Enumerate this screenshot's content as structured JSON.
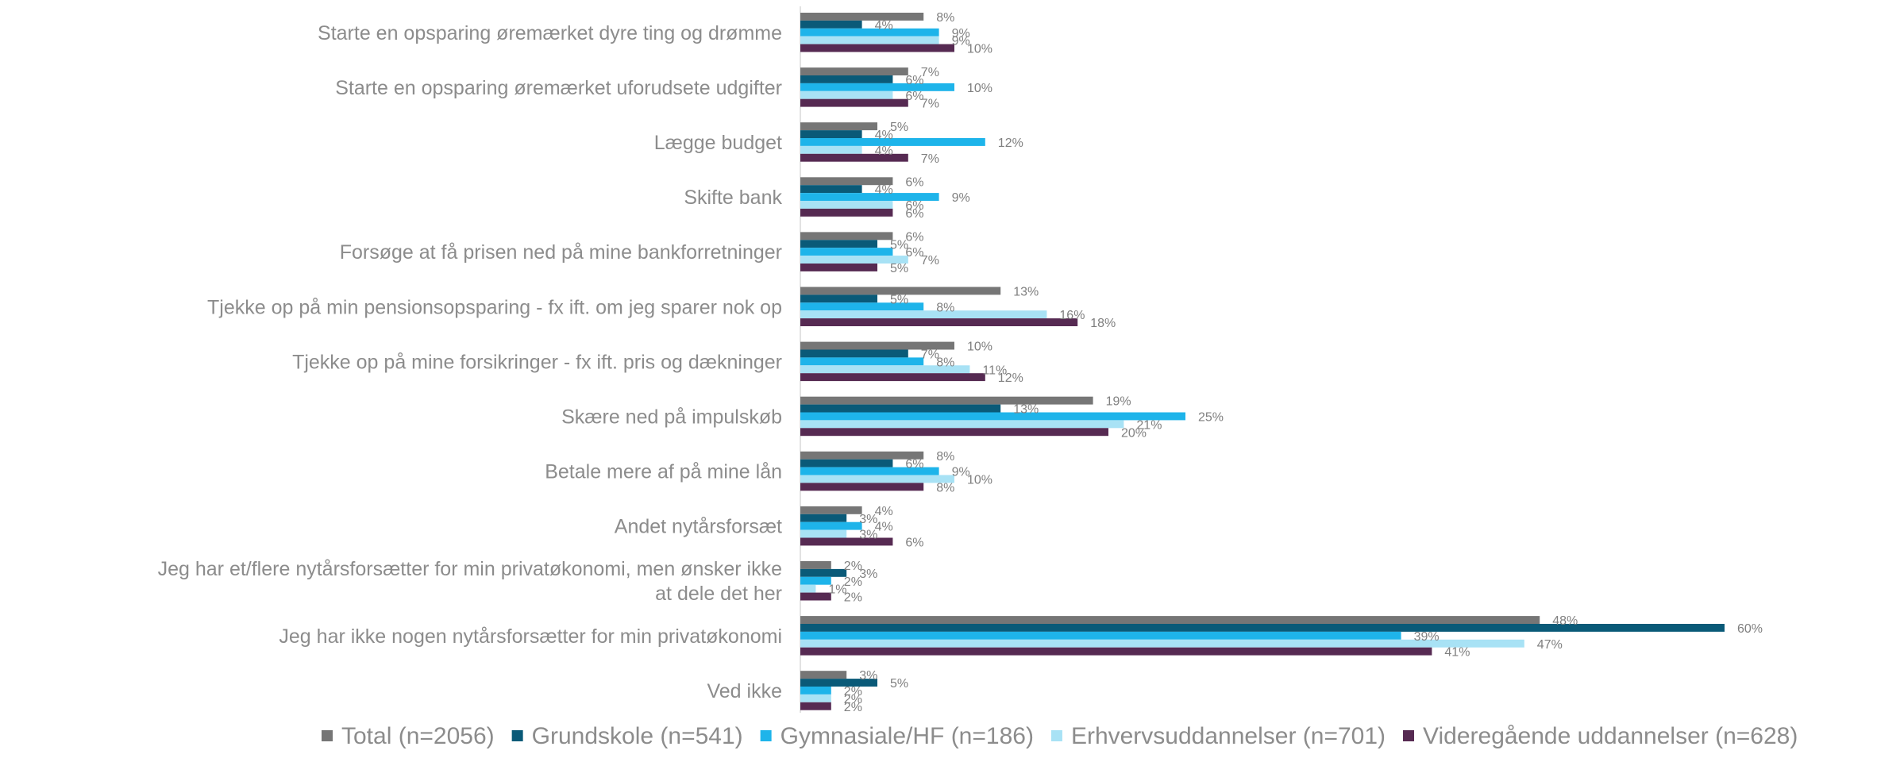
{
  "chart_data": {
    "type": "bar",
    "orientation": "horizontal",
    "categories": [
      "Starte en opsparing øremærket dyre ting og drømme",
      "Starte en opsparing øremærket uforudsete udgifter",
      "Lægge budget",
      "Skifte bank",
      "Forsøge at få prisen ned på mine bankforretninger",
      "Tjekke op på min pensionsopsparing - fx ift. om jeg sparer nok op",
      "Tjekke op på mine forsikringer - fx ift. pris og dækninger",
      "Skære ned på impulskøb",
      "Betale mere af på mine lån",
      "Andet nytårsforsæt",
      "Jeg har et/flere nytårsforsætter for min privatøkonomi, men ønsker ikke at dele det her",
      "Jeg har ikke nogen nytårsforsætter for min privatøkonomi",
      "Ved ikke"
    ],
    "series": [
      {
        "name": "Total (n=2056)",
        "color": "#767676",
        "values": [
          8,
          7,
          5,
          6,
          6,
          13,
          10,
          19,
          8,
          4,
          2,
          48,
          3
        ]
      },
      {
        "name": "Grundskole (n=541)",
        "color": "#0a5a78",
        "values": [
          4,
          6,
          4,
          4,
          5,
          5,
          7,
          13,
          6,
          3,
          3,
          60,
          5
        ]
      },
      {
        "name": "Gymnasiale/HF (n=186)",
        "color": "#1eb4ea",
        "values": [
          9,
          10,
          12,
          9,
          6,
          8,
          8,
          25,
          9,
          4,
          2,
          39,
          2
        ]
      },
      {
        "name": "Erhvervsuddannelser (n=701)",
        "color": "#a8e2f5",
        "values": [
          9,
          6,
          4,
          6,
          7,
          16,
          11,
          21,
          10,
          3,
          1,
          47,
          2
        ]
      },
      {
        "name": "Videregående uddannelser (n=628)",
        "color": "#562a52",
        "values": [
          10,
          7,
          7,
          6,
          5,
          18,
          12,
          20,
          8,
          6,
          2,
          41,
          2
        ]
      }
    ],
    "value_suffix": "%",
    "grid": false,
    "legend_position": "bottom"
  }
}
